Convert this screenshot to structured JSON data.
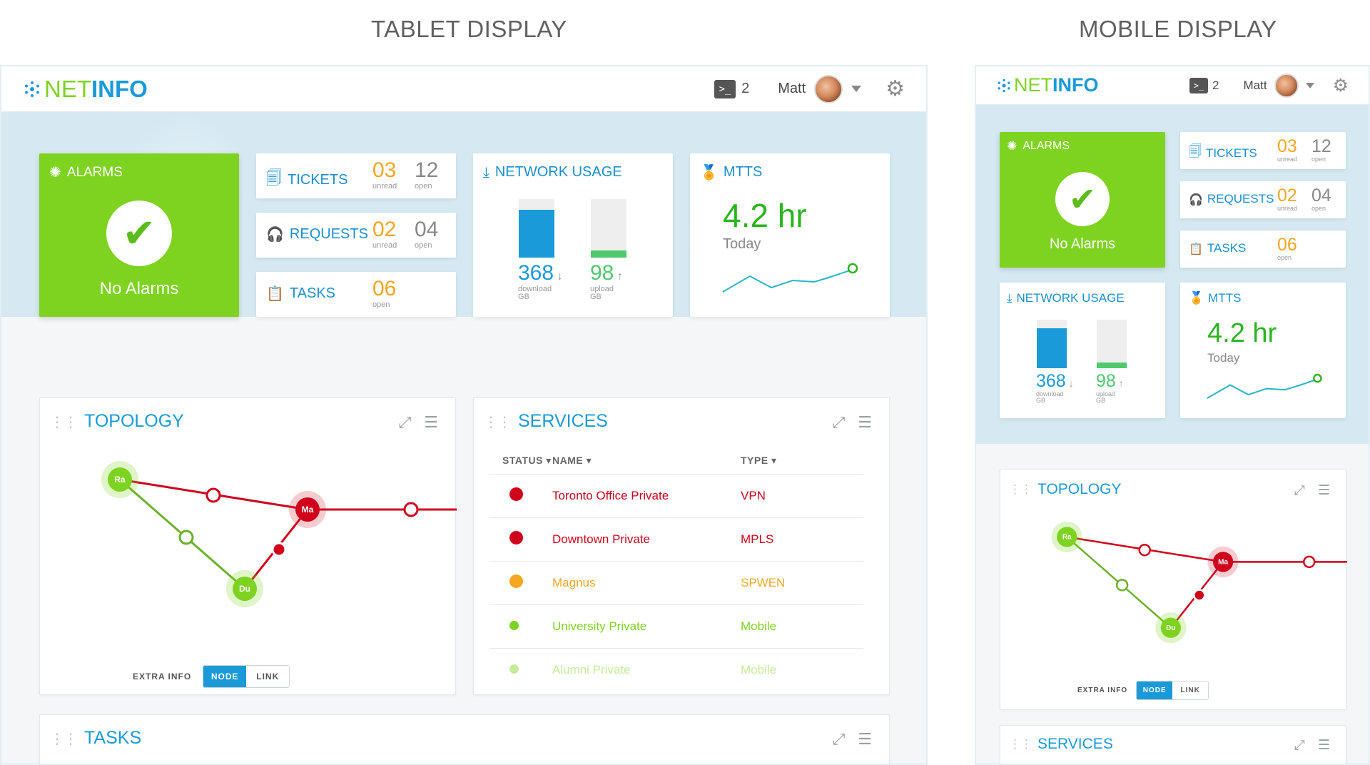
{
  "headings": {
    "tablet": "TABLET DISPLAY",
    "mobile": "MOBILE DISPLAY"
  },
  "brand": {
    "net": "NET",
    "info": "INFO"
  },
  "header": {
    "terminal_count": "2",
    "user": "Matt"
  },
  "alarms": {
    "label": "ALARMS",
    "message": "No Alarms"
  },
  "tickets": {
    "label": "TICKETS",
    "unread": "03",
    "unread_label": "unread",
    "open": "12",
    "open_label": "open"
  },
  "requests": {
    "label": "REQUESTS",
    "unread": "02",
    "unread_label": "unread",
    "open": "04",
    "open_label": "open"
  },
  "tasks_card": {
    "label": "TASKS",
    "open": "06",
    "open_label": "open"
  },
  "network": {
    "label": "NETWORK USAGE",
    "download": "368",
    "download_label": "download",
    "download_unit": "GB",
    "upload": "98",
    "upload_label": "upload",
    "upload_unit": "GB",
    "download_fill": 0.82,
    "upload_fill": 0.12
  },
  "mtts": {
    "label": "MTTS",
    "value": "4.2 hr",
    "sub": "Today"
  },
  "topology": {
    "title": "TOPOLOGY",
    "extra_info": "EXTRA INFO",
    "node": "NODE",
    "link": "LINK",
    "nodes": {
      "ra": "Ra",
      "ma": "Ma",
      "du": "Du"
    }
  },
  "services": {
    "title": "SERVICES",
    "columns": {
      "status": "STATUS",
      "name": "NAME",
      "type": "TYPE"
    },
    "rows": [
      {
        "name": "Toronto Office Private",
        "type": "VPN",
        "color": "#d0021b"
      },
      {
        "name": "Downtown Private",
        "type": "MPLS",
        "color": "#d0021b"
      },
      {
        "name": "Magnus",
        "type": "SPWEN",
        "color": "#f5a623"
      },
      {
        "name": "University Private",
        "type": "Mobile",
        "color": "#7ed321"
      },
      {
        "name": "Alumni Private",
        "type": "Mobile",
        "color": "#7ed321"
      }
    ]
  },
  "tasks_panel": {
    "title": "TASKS"
  },
  "colors": {
    "green": "#7ed321",
    "blue": "#1a9ad9",
    "red": "#d0021b",
    "orange": "#f5a623"
  }
}
